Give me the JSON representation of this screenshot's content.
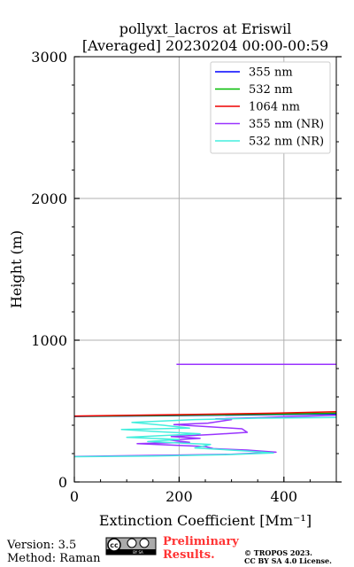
{
  "chart_data": {
    "type": "line",
    "title_line1": "pollyxt_lacros at Eriswil",
    "title_line2": "[Averaged] 20230204 00:00-00:59",
    "xlabel": "Extinction Coefficient [Mm⁻¹]",
    "ylabel": "Height (m)",
    "xlim": [
      0,
      500
    ],
    "ylim": [
      0,
      3000
    ],
    "xticks": [
      0,
      200,
      400
    ],
    "yticks": [
      0,
      1000,
      2000,
      3000
    ],
    "grid": true,
    "legend_position": "top-right",
    "series": [
      {
        "name": "355 nm",
        "color": "#0000ff",
        "points": [
          [
            500,
            480
          ],
          [
            380,
            475
          ],
          [
            200,
            468
          ],
          [
            0,
            462
          ]
        ]
      },
      {
        "name": "532 nm",
        "color": "#00bb00",
        "points": [
          [
            500,
            485
          ],
          [
            380,
            478
          ],
          [
            200,
            470
          ],
          [
            0,
            463
          ]
        ]
      },
      {
        "name": "1064 nm",
        "color": "#ee0000",
        "points": [
          [
            500,
            495
          ],
          [
            380,
            485
          ],
          [
            200,
            475
          ],
          [
            0,
            465
          ]
        ]
      },
      {
        "name": "355 nm (NR)",
        "color": "#9933ff",
        "points": [
          [
            500,
            830
          ],
          [
            195,
            830
          ],
          [
            null,
            null
          ],
          [
            500,
            470
          ],
          [
            270,
            445
          ],
          [
            300,
            440
          ],
          [
            255,
            415
          ],
          [
            190,
            405
          ],
          [
            320,
            375
          ],
          [
            330,
            350
          ],
          [
            265,
            335
          ],
          [
            185,
            320
          ],
          [
            240,
            308
          ],
          [
            182,
            295
          ],
          [
            220,
            280
          ],
          [
            120,
            270
          ],
          [
            250,
            250
          ],
          [
            265,
            235
          ],
          [
            330,
            225
          ],
          [
            385,
            210
          ],
          [
            300,
            195
          ],
          [
            170,
            188
          ],
          [
            0,
            180
          ]
        ]
      },
      {
        "name": "532 nm (NR)",
        "color": "#44eedd",
        "points": [
          [
            500,
            455
          ],
          [
            350,
            450
          ],
          [
            230,
            440
          ],
          [
            110,
            420
          ],
          [
            170,
            400
          ],
          [
            220,
            380
          ],
          [
            90,
            370
          ],
          [
            160,
            355
          ],
          [
            240,
            340
          ],
          [
            100,
            315
          ],
          [
            200,
            300
          ],
          [
            140,
            285
          ],
          [
            260,
            265
          ],
          [
            230,
            240
          ],
          [
            330,
            218
          ],
          [
            380,
            205
          ],
          [
            290,
            192
          ],
          [
            150,
            183
          ],
          [
            0,
            178
          ]
        ]
      }
    ]
  },
  "footer": {
    "version": "Version: 3.5",
    "method": "Method: Raman",
    "preliminary_1": "Preliminary",
    "preliminary_2": "Results.",
    "copyright_1": "© TROPOS 2023.",
    "copyright_2": "CC BY SA 4.0 License.",
    "cc_logo_text": "cc",
    "cc_badge_labels": "BY   SA"
  }
}
